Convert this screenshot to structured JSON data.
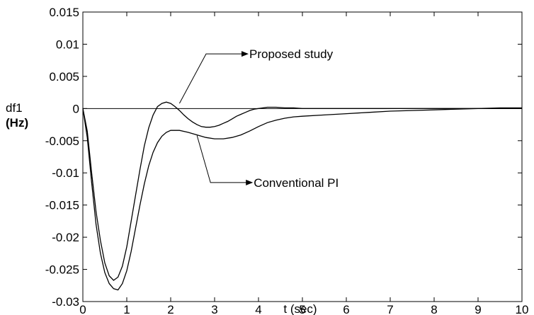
{
  "chart_data": {
    "type": "line",
    "xlabel": "t (sec)",
    "ylabel_line1": "df1",
    "ylabel_line2": "(Hz)",
    "xlim": [
      0,
      10
    ],
    "ylim": [
      -0.03,
      0.015
    ],
    "xticks": [
      0,
      1,
      2,
      3,
      4,
      5,
      6,
      7,
      8,
      9,
      10
    ],
    "xtick_labels": [
      "0",
      "1",
      "2",
      "3",
      "4",
      "5",
      "6",
      "7",
      "8",
      "9",
      "10"
    ],
    "yticks": [
      0.015,
      0.01,
      0.005,
      0,
      -0.005,
      -0.01,
      -0.015,
      -0.02,
      -0.025,
      -0.03
    ],
    "ytick_labels": [
      "0.015",
      "0.01",
      "0.005",
      "0",
      "-0.005",
      "-0.01",
      "-0.015",
      "-0.02",
      "-0.025",
      "-0.03"
    ],
    "grid": false,
    "reference_line_y": 0,
    "series": [
      {
        "x": [
          0,
          0.1,
          0.2,
          0.3,
          0.4,
          0.5,
          0.6,
          0.7,
          0.8,
          0.9,
          1.0,
          1.1,
          1.2,
          1.3,
          1.4,
          1.5,
          1.6,
          1.7,
          1.8,
          1.9,
          2.0,
          2.1,
          2.2,
          2.3,
          2.4,
          2.5,
          2.6,
          2.7,
          2.8,
          2.9,
          3.0,
          3.1,
          3.2,
          3.3,
          3.4,
          3.5,
          3.6,
          3.7,
          3.8,
          3.9,
          4.0,
          4.2,
          4.4,
          4.6,
          4.8,
          5.0,
          5.5,
          6.0,
          7.0,
          8.0,
          9.0,
          10.0
        ],
        "values": [
          0,
          -0.0035,
          -0.01,
          -0.016,
          -0.0205,
          -0.024,
          -0.026,
          -0.0267,
          -0.0262,
          -0.0245,
          -0.0215,
          -0.0175,
          -0.0135,
          -0.0095,
          -0.0058,
          -0.003,
          -0.001,
          0.0003,
          0.0008,
          0.001,
          0.0008,
          0.0003,
          -0.0003,
          -0.001,
          -0.0016,
          -0.0021,
          -0.0025,
          -0.0028,
          -0.0029,
          -0.0029,
          -0.0028,
          -0.0026,
          -0.0023,
          -0.002,
          -0.0016,
          -0.0012,
          -0.0009,
          -0.0006,
          -0.0003,
          -0.0001,
          0.0,
          0.0002,
          0.0002,
          0.0001,
          0.0001,
          0.0,
          0.0,
          0.0,
          0.0,
          0.0,
          0.0,
          0.0
        ]
      },
      {
        "x": [
          0,
          0.1,
          0.2,
          0.3,
          0.4,
          0.5,
          0.6,
          0.7,
          0.8,
          0.9,
          1.0,
          1.1,
          1.2,
          1.3,
          1.4,
          1.5,
          1.6,
          1.7,
          1.8,
          1.9,
          2.0,
          2.2,
          2.4,
          2.6,
          2.8,
          3.0,
          3.2,
          3.4,
          3.6,
          3.8,
          4.0,
          4.2,
          4.4,
          4.6,
          4.8,
          5.0,
          5.5,
          6.0,
          6.5,
          7.0,
          7.5,
          8.0,
          8.5,
          9.0,
          9.5,
          10.0
        ],
        "values": [
          0,
          -0.0045,
          -0.0115,
          -0.018,
          -0.0225,
          -0.0255,
          -0.0272,
          -0.028,
          -0.0282,
          -0.0272,
          -0.0252,
          -0.0222,
          -0.0186,
          -0.015,
          -0.0117,
          -0.0089,
          -0.0068,
          -0.0053,
          -0.0043,
          -0.0037,
          -0.0034,
          -0.0034,
          -0.0037,
          -0.0041,
          -0.0045,
          -0.0047,
          -0.0047,
          -0.0045,
          -0.0041,
          -0.0035,
          -0.0028,
          -0.0022,
          -0.0018,
          -0.0015,
          -0.0013,
          -0.0012,
          -0.001,
          -0.0008,
          -0.0006,
          -0.0004,
          -0.0003,
          -0.0002,
          -0.0001,
          0.0,
          0.0001,
          0.0001
        ]
      }
    ],
    "annotations": [
      {
        "text": "Proposed study",
        "target_x": 2.2,
        "target_y": 0.0008,
        "label_x": 3.0,
        "label_y": 0.0085
      },
      {
        "text": "Conventional PI",
        "target_x": 2.6,
        "target_y": -0.0042,
        "label_x": 3.1,
        "label_y": -0.0115
      }
    ]
  }
}
